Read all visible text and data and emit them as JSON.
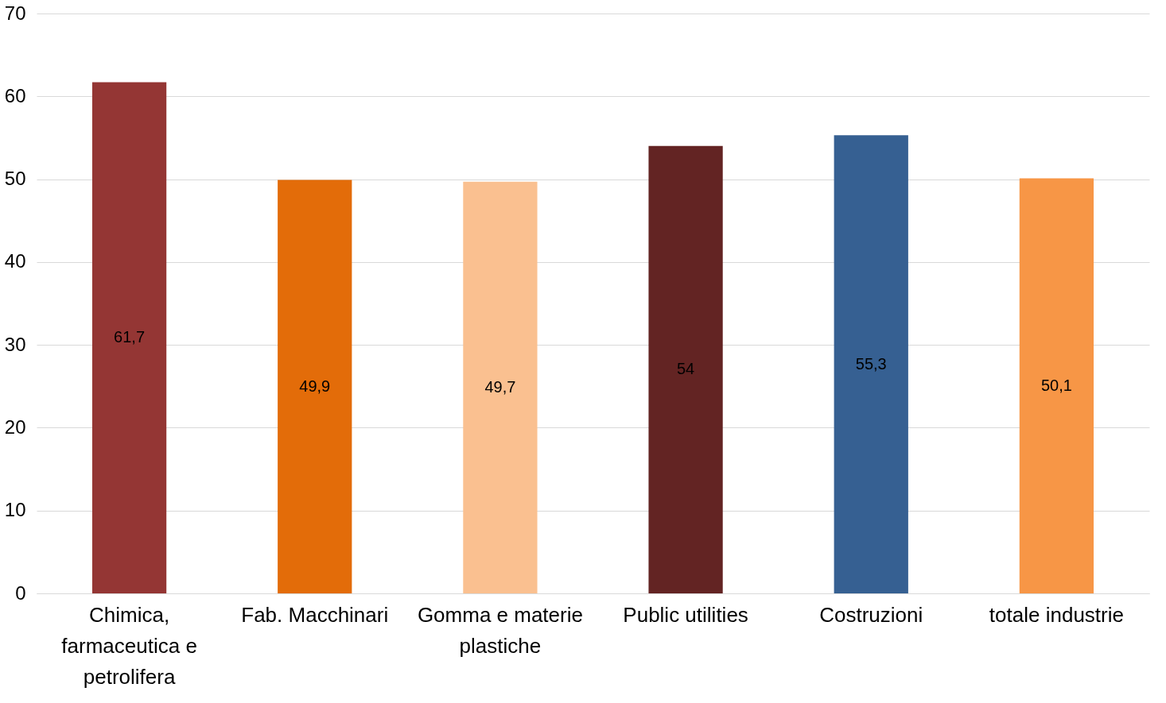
{
  "chart_data": {
    "type": "bar",
    "categories": [
      "Chimica, farmaceutica e petrolifera",
      "Fab. Macchinari",
      "Gomma e materie plastiche",
      "Public utilities",
      "Costruzioni",
      "totale industrie"
    ],
    "values": [
      61.7,
      49.9,
      49.7,
      54,
      55.3,
      50.1
    ],
    "colors": [
      "#943634",
      "#e36c09",
      "#fac090",
      "#632423",
      "#366092",
      "#f79646"
    ],
    "value_labels": [
      "61,7",
      "49,9",
      "49,7",
      "54",
      "55,3",
      "50,1"
    ],
    "ylim": [
      0,
      70
    ],
    "yticks": [
      0,
      10,
      20,
      30,
      40,
      50,
      60,
      70
    ],
    "grid": "y"
  }
}
